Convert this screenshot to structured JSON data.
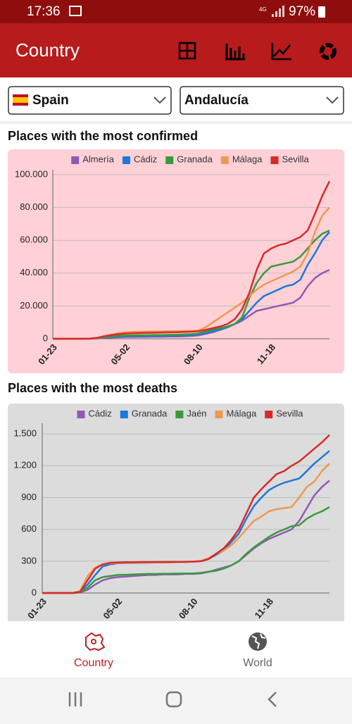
{
  "status_bar": {
    "time": "17:36",
    "network": "4G",
    "battery": "97%"
  },
  "app_bar": {
    "title": "Country"
  },
  "selectors": {
    "country": "Spain",
    "region": "Andalucía"
  },
  "chart_data": [
    {
      "type": "line",
      "title": "Places with the most confirmed",
      "grid": true,
      "legend": "top",
      "categories": [
        "01-23",
        null,
        null,
        null,
        null,
        null,
        null,
        null,
        null,
        null,
        "05-02",
        null,
        null,
        null,
        null,
        null,
        null,
        null,
        null,
        null,
        "08-10",
        null,
        null,
        null,
        null,
        null,
        null,
        null,
        null,
        null,
        "11-18",
        null,
        null,
        null,
        null,
        null,
        null,
        null,
        null
      ],
      "ylim": [
        0,
        103000
      ],
      "yticks": [
        0,
        {
          "value": 20000,
          "label": "20.000"
        },
        {
          "value": 40000,
          "label": "40.000"
        },
        {
          "value": 60000,
          "label": "60.000"
        },
        {
          "value": 80000,
          "label": "80.000"
        },
        {
          "value": 100000,
          "label": "100.000"
        }
      ],
      "series": [
        {
          "name": "Almería",
          "color": "#8e5ab5",
          "values": [
            0,
            0,
            0,
            0,
            0,
            30,
            150,
            500,
            800,
            1000,
            1100,
            1100,
            1200,
            1200,
            1300,
            1300,
            1400,
            1400,
            1500,
            1700,
            2000,
            3000,
            4000,
            5500,
            7000,
            9000,
            11000,
            14000,
            17000,
            18000,
            19000,
            20000,
            21000,
            22000,
            25000,
            32000,
            37000,
            40000,
            42000
          ]
        },
        {
          "name": "Cádiz",
          "color": "#1e78d8",
          "values": [
            0,
            0,
            0,
            0,
            0,
            50,
            200,
            700,
            1100,
            1400,
            1500,
            1600,
            1600,
            1700,
            1700,
            1800,
            1800,
            1900,
            2000,
            2200,
            2500,
            3500,
            4500,
            5500,
            7000,
            9000,
            12000,
            17000,
            22000,
            26000,
            28000,
            30000,
            32000,
            33000,
            36000,
            45000,
            52000,
            60000,
            65000
          ]
        },
        {
          "name": "Granada",
          "color": "#3a9a3a",
          "values": [
            0,
            0,
            0,
            0,
            0,
            50,
            300,
            900,
            1400,
            1800,
            2000,
            2100,
            2200,
            2200,
            2300,
            2300,
            2400,
            2500,
            2600,
            2800,
            3200,
            4500,
            5500,
            6500,
            7500,
            9000,
            13000,
            25000,
            34000,
            40000,
            44000,
            45000,
            46000,
            47000,
            50000,
            55000,
            60000,
            64000,
            66000
          ]
        },
        {
          "name": "Málaga",
          "color": "#f09850",
          "values": [
            0,
            0,
            0,
            0,
            0,
            100,
            400,
            1500,
            2500,
            3500,
            4000,
            4200,
            4300,
            4400,
            4500,
            4500,
            4600,
            4600,
            4700,
            4800,
            5000,
            7000,
            10000,
            13000,
            16000,
            19000,
            22000,
            26000,
            30000,
            33000,
            35000,
            37000,
            39000,
            41000,
            44000,
            52000,
            65000,
            75000,
            80000
          ]
        },
        {
          "name": "Sevilla",
          "color": "#d62b2b",
          "values": [
            0,
            0,
            0,
            0,
            0,
            100,
            500,
            1500,
            2200,
            2800,
            3200,
            3400,
            3500,
            3600,
            3700,
            3800,
            3900,
            4000,
            4100,
            4300,
            4600,
            5500,
            6500,
            7500,
            9000,
            12000,
            18000,
            28000,
            42000,
            52000,
            55000,
            57000,
            58000,
            60000,
            62000,
            66000,
            76000,
            87000,
            96000
          ]
        }
      ]
    },
    {
      "type": "line",
      "title": "Places with the most deaths",
      "grid": true,
      "legend": "top",
      "categories": [
        "01-23",
        null,
        null,
        null,
        null,
        null,
        null,
        null,
        null,
        null,
        "05-02",
        null,
        null,
        null,
        null,
        null,
        null,
        null,
        null,
        null,
        "08-10",
        null,
        null,
        null,
        null,
        null,
        null,
        null,
        null,
        null,
        "11-18",
        null,
        null,
        null,
        null,
        null,
        null,
        null,
        null
      ],
      "ylim": [
        0,
        1600
      ],
      "yticks": [
        0,
        300,
        600,
        900,
        {
          "value": 1200,
          "label": "1.200"
        },
        {
          "value": 1500,
          "label": "1.500"
        }
      ],
      "series": [
        {
          "name": "Cádiz",
          "color": "#8e5ab5",
          "values": [
            0,
            0,
            0,
            0,
            0,
            5,
            30,
            80,
            120,
            140,
            150,
            155,
            160,
            165,
            170,
            170,
            175,
            175,
            175,
            180,
            180,
            185,
            200,
            220,
            240,
            260,
            300,
            360,
            420,
            470,
            510,
            540,
            570,
            600,
            680,
            800,
            920,
            1000,
            1060
          ]
        },
        {
          "name": "Granada",
          "color": "#1e78d8",
          "values": [
            0,
            0,
            0,
            0,
            0,
            10,
            80,
            170,
            250,
            270,
            280,
            282,
            284,
            285,
            286,
            287,
            288,
            289,
            290,
            292,
            295,
            300,
            320,
            360,
            400,
            480,
            560,
            700,
            820,
            900,
            970,
            1010,
            1040,
            1060,
            1080,
            1150,
            1220,
            1280,
            1340
          ]
        },
        {
          "name": "Jaén",
          "color": "#3a9a3a",
          "values": [
            0,
            0,
            0,
            0,
            0,
            5,
            50,
            120,
            150,
            160,
            170,
            172,
            175,
            177,
            180,
            180,
            182,
            182,
            183,
            184,
            185,
            190,
            200,
            210,
            230,
            260,
            300,
            370,
            430,
            480,
            530,
            570,
            600,
            630,
            640,
            700,
            740,
            770,
            810
          ]
        },
        {
          "name": "Málaga",
          "color": "#f09850",
          "values": [
            0,
            0,
            0,
            0,
            0,
            20,
            160,
            240,
            270,
            280,
            283,
            285,
            286,
            287,
            288,
            288,
            289,
            289,
            290,
            292,
            295,
            300,
            330,
            370,
            400,
            450,
            520,
            600,
            680,
            720,
            770,
            790,
            800,
            810,
            900,
            1000,
            1050,
            1150,
            1220
          ]
        },
        {
          "name": "Sevilla",
          "color": "#d62b2b",
          "values": [
            0,
            0,
            0,
            0,
            0,
            10,
            120,
            230,
            270,
            285,
            288,
            290,
            291,
            292,
            292,
            293,
            293,
            294,
            294,
            295,
            296,
            300,
            320,
            370,
            420,
            500,
            600,
            750,
            900,
            980,
            1050,
            1120,
            1150,
            1200,
            1240,
            1300,
            1360,
            1420,
            1490
          ]
        }
      ]
    }
  ],
  "bottom_nav": {
    "items": [
      "Country",
      "World"
    ]
  }
}
